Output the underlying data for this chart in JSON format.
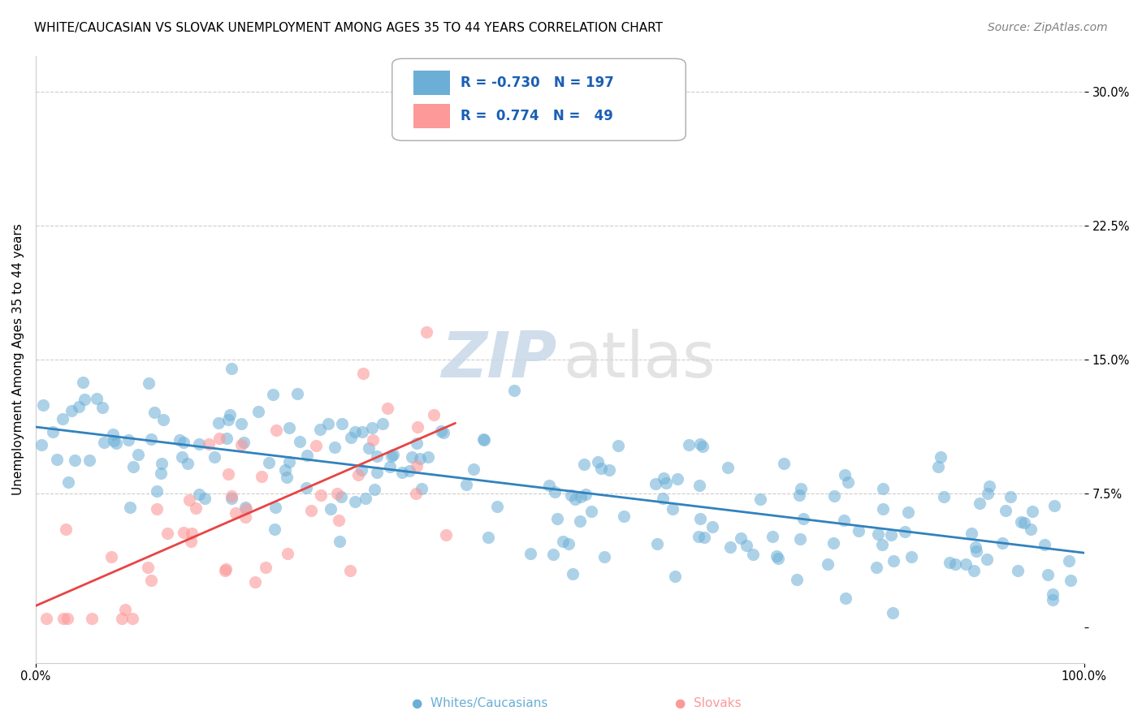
{
  "title": "WHITE/CAUCASIAN VS SLOVAK UNEMPLOYMENT AMONG AGES 35 TO 44 YEARS CORRELATION CHART",
  "source": "Source: ZipAtlas.com",
  "ylabel": "Unemployment Among Ages 35 to 44 years",
  "xlim": [
    0,
    100
  ],
  "ylim": [
    -2,
    32
  ],
  "legend_r_white": "-0.730",
  "legend_n_white": "197",
  "legend_r_slovak": "0.774",
  "legend_n_slovak": "49",
  "blue_color": "#6baed6",
  "blue_line_color": "#3182bd",
  "pink_color": "#fc9999",
  "pink_line_color": "#e84444",
  "white_seed": 42,
  "slovak_seed": 7,
  "title_fontsize": 11,
  "source_fontsize": 10,
  "axis_label_fontsize": 11,
  "legend_fontsize": 12,
  "tick_fontsize": 10.5
}
